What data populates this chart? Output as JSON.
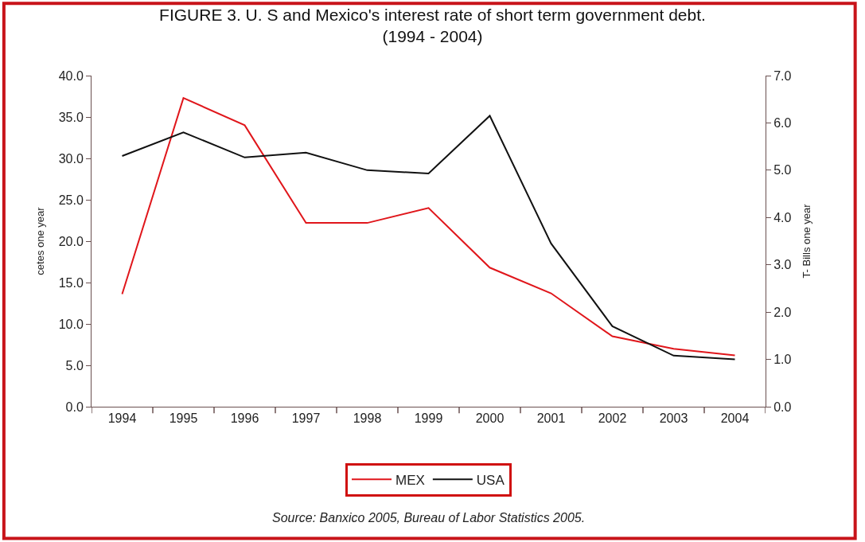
{
  "chart_data": {
    "type": "line",
    "title": "FIGURE 3. U. S and Mexico's interest rate of short term government debt.\n(1994 - 2004)",
    "categories": [
      "1994",
      "1995",
      "1996",
      "1997",
      "1998",
      "1999",
      "2000",
      "2001",
      "2002",
      "2003",
      "2004"
    ],
    "series": [
      {
        "name": "MEX",
        "color": "#e0161b",
        "values": [
          13.6,
          37.3,
          34.0,
          22.2,
          22.2,
          24.0,
          16.8,
          13.7,
          8.5,
          7.0,
          6.2
        ]
      },
      {
        "name": "USA",
        "color": "#111111",
        "axis": "y2",
        "values": [
          5.3,
          5.8,
          5.27,
          5.37,
          5.0,
          4.93,
          6.15,
          3.45,
          1.7,
          1.08,
          1.0
        ]
      }
    ],
    "ylabel": "cetes one year",
    "y2label": "T- Bills one year",
    "ylim": [
      0,
      40
    ],
    "yticks": [
      {
        "value": 0,
        "label": "0.0"
      },
      {
        "value": 5,
        "label": "5.0"
      },
      {
        "value": 10,
        "label": "10.0"
      },
      {
        "value": 15,
        "label": "15.0"
      },
      {
        "value": 20,
        "label": "20.0"
      },
      {
        "value": 25,
        "label": "25.0"
      },
      {
        "value": 30,
        "label": "30.0"
      },
      {
        "value": 35,
        "label": "35.0"
      },
      {
        "value": 40,
        "label": "40.0"
      }
    ],
    "y2lim": [
      0,
      7
    ],
    "y2ticks": [
      {
        "value": 0,
        "label": "0.0"
      },
      {
        "value": 1,
        "label": "1.0"
      },
      {
        "value": 2,
        "label": "2.0"
      },
      {
        "value": 3,
        "label": "3.0"
      },
      {
        "value": 4,
        "label": "4.0"
      },
      {
        "value": 5,
        "label": "5.0"
      },
      {
        "value": 6,
        "label": "6.0"
      },
      {
        "value": 7,
        "label": "7.0"
      }
    ],
    "legend": "bottom",
    "marker": "none",
    "line_style": "solid",
    "annotations": [
      "Source: Banxico 2005, Bureau of Labor Statistics 2005."
    ]
  }
}
